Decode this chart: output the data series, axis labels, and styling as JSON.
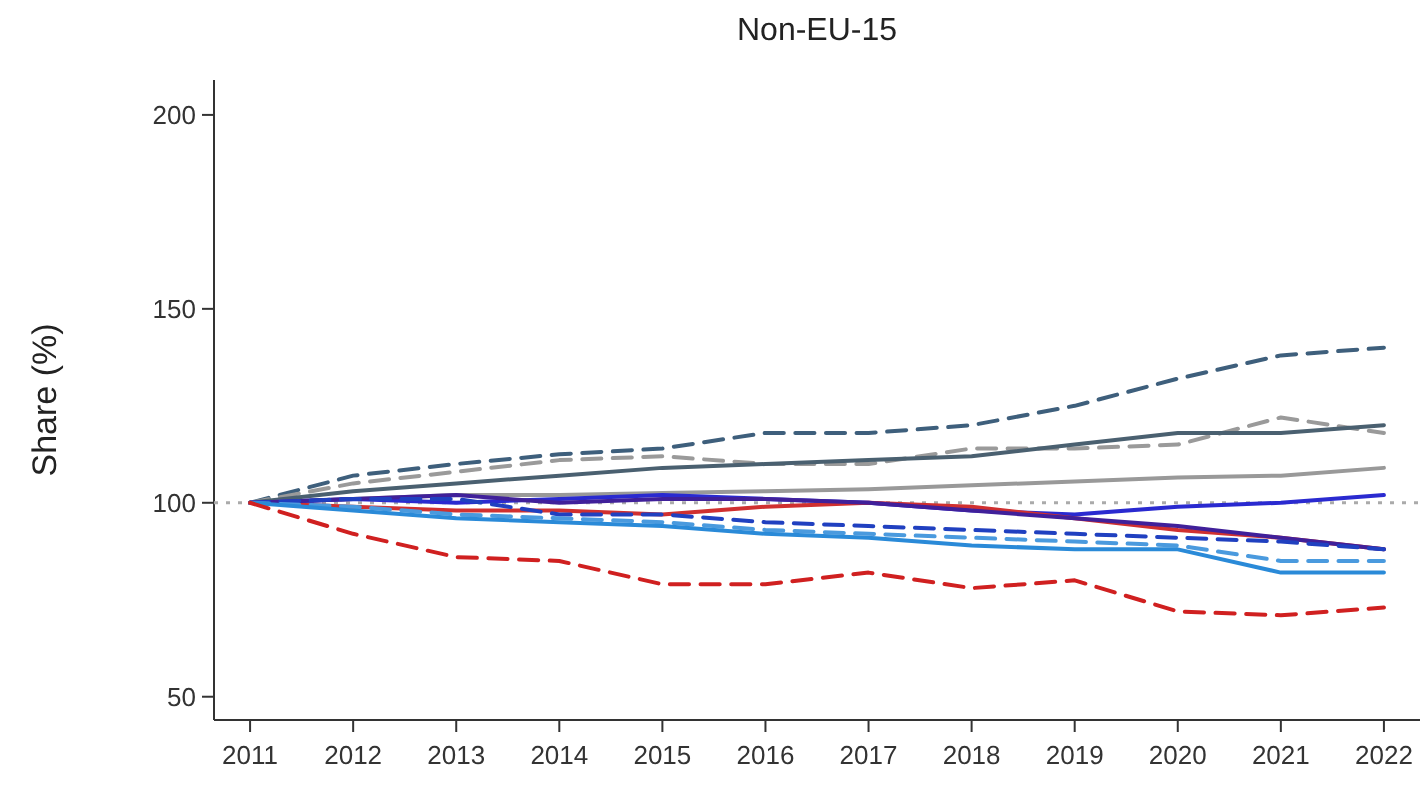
{
  "chart_data": {
    "type": "line",
    "title": "Non-EU-15",
    "ylabel": "Share (%)",
    "x": [
      2011,
      2012,
      2013,
      2014,
      2015,
      2016,
      2017,
      2018,
      2019,
      2020,
      2021,
      2022
    ],
    "xlim": [
      2010.65,
      2022.35
    ],
    "xticks": [
      2011,
      2012,
      2013,
      2014,
      2015,
      2016,
      2017,
      2018,
      2019,
      2020,
      2021,
      2022
    ],
    "ylim": [
      44,
      209
    ],
    "yticks": [
      50,
      100,
      150,
      200
    ],
    "grid": false,
    "marker": "none",
    "ref_lines": [
      {
        "axis": "y",
        "value": 100,
        "color": "#aaaaaa",
        "line_style": "dotted"
      }
    ],
    "series": [
      {
        "color": "#3e5f7c",
        "line_style": "dashed",
        "values": [
          100,
          107,
          110,
          112.5,
          114,
          118,
          118,
          120,
          125,
          132,
          138,
          140
        ]
      },
      {
        "color": "#9a9a9a",
        "line_style": "dashed",
        "values": [
          100,
          105,
          108,
          111,
          112,
          110,
          110,
          114,
          114,
          115,
          122,
          118
        ]
      },
      {
        "color": "#4a6070",
        "line_style": "solid",
        "values": [
          100,
          103,
          105,
          107,
          109,
          110,
          111,
          112,
          115,
          118,
          118,
          120
        ]
      },
      {
        "color": "#999999",
        "line_style": "solid",
        "values": [
          100,
          101,
          102,
          102,
          102.5,
          103,
          103.5,
          104.5,
          105.5,
          106.5,
          107,
          109
        ]
      },
      {
        "color": "#2a2ad0",
        "line_style": "solid",
        "values": [
          100,
          101,
          100,
          101,
          102,
          101,
          100,
          98,
          97,
          99,
          100,
          102
        ]
      },
      {
        "color": "#d03030",
        "line_style": "solid",
        "values": [
          100,
          99,
          98,
          98,
          97,
          99,
          100,
          99,
          96,
          93,
          91,
          88
        ]
      },
      {
        "color": "#40209a",
        "line_style": "solid",
        "values": [
          100,
          101,
          102,
          100,
          101,
          101,
          100,
          98,
          96,
          94,
          91,
          88
        ]
      },
      {
        "color": "#2040c0",
        "line_style": "dashed",
        "values": [
          100,
          101,
          101,
          97,
          97,
          95,
          94,
          93,
          92,
          91,
          90,
          88
        ]
      },
      {
        "color": "#4a9ade",
        "line_style": "dashed",
        "values": [
          100,
          99,
          97,
          96,
          95,
          93,
          92,
          91,
          90,
          89,
          85,
          85
        ]
      },
      {
        "color": "#2a8ad8",
        "line_style": "solid",
        "values": [
          100,
          98,
          96,
          95,
          94,
          92,
          91,
          89,
          88,
          88,
          82,
          82
        ]
      },
      {
        "color": "#d02020",
        "line_style": "dashed",
        "values": [
          100,
          92,
          86,
          85,
          79,
          79,
          82,
          78,
          80,
          72,
          71,
          73
        ]
      }
    ]
  }
}
